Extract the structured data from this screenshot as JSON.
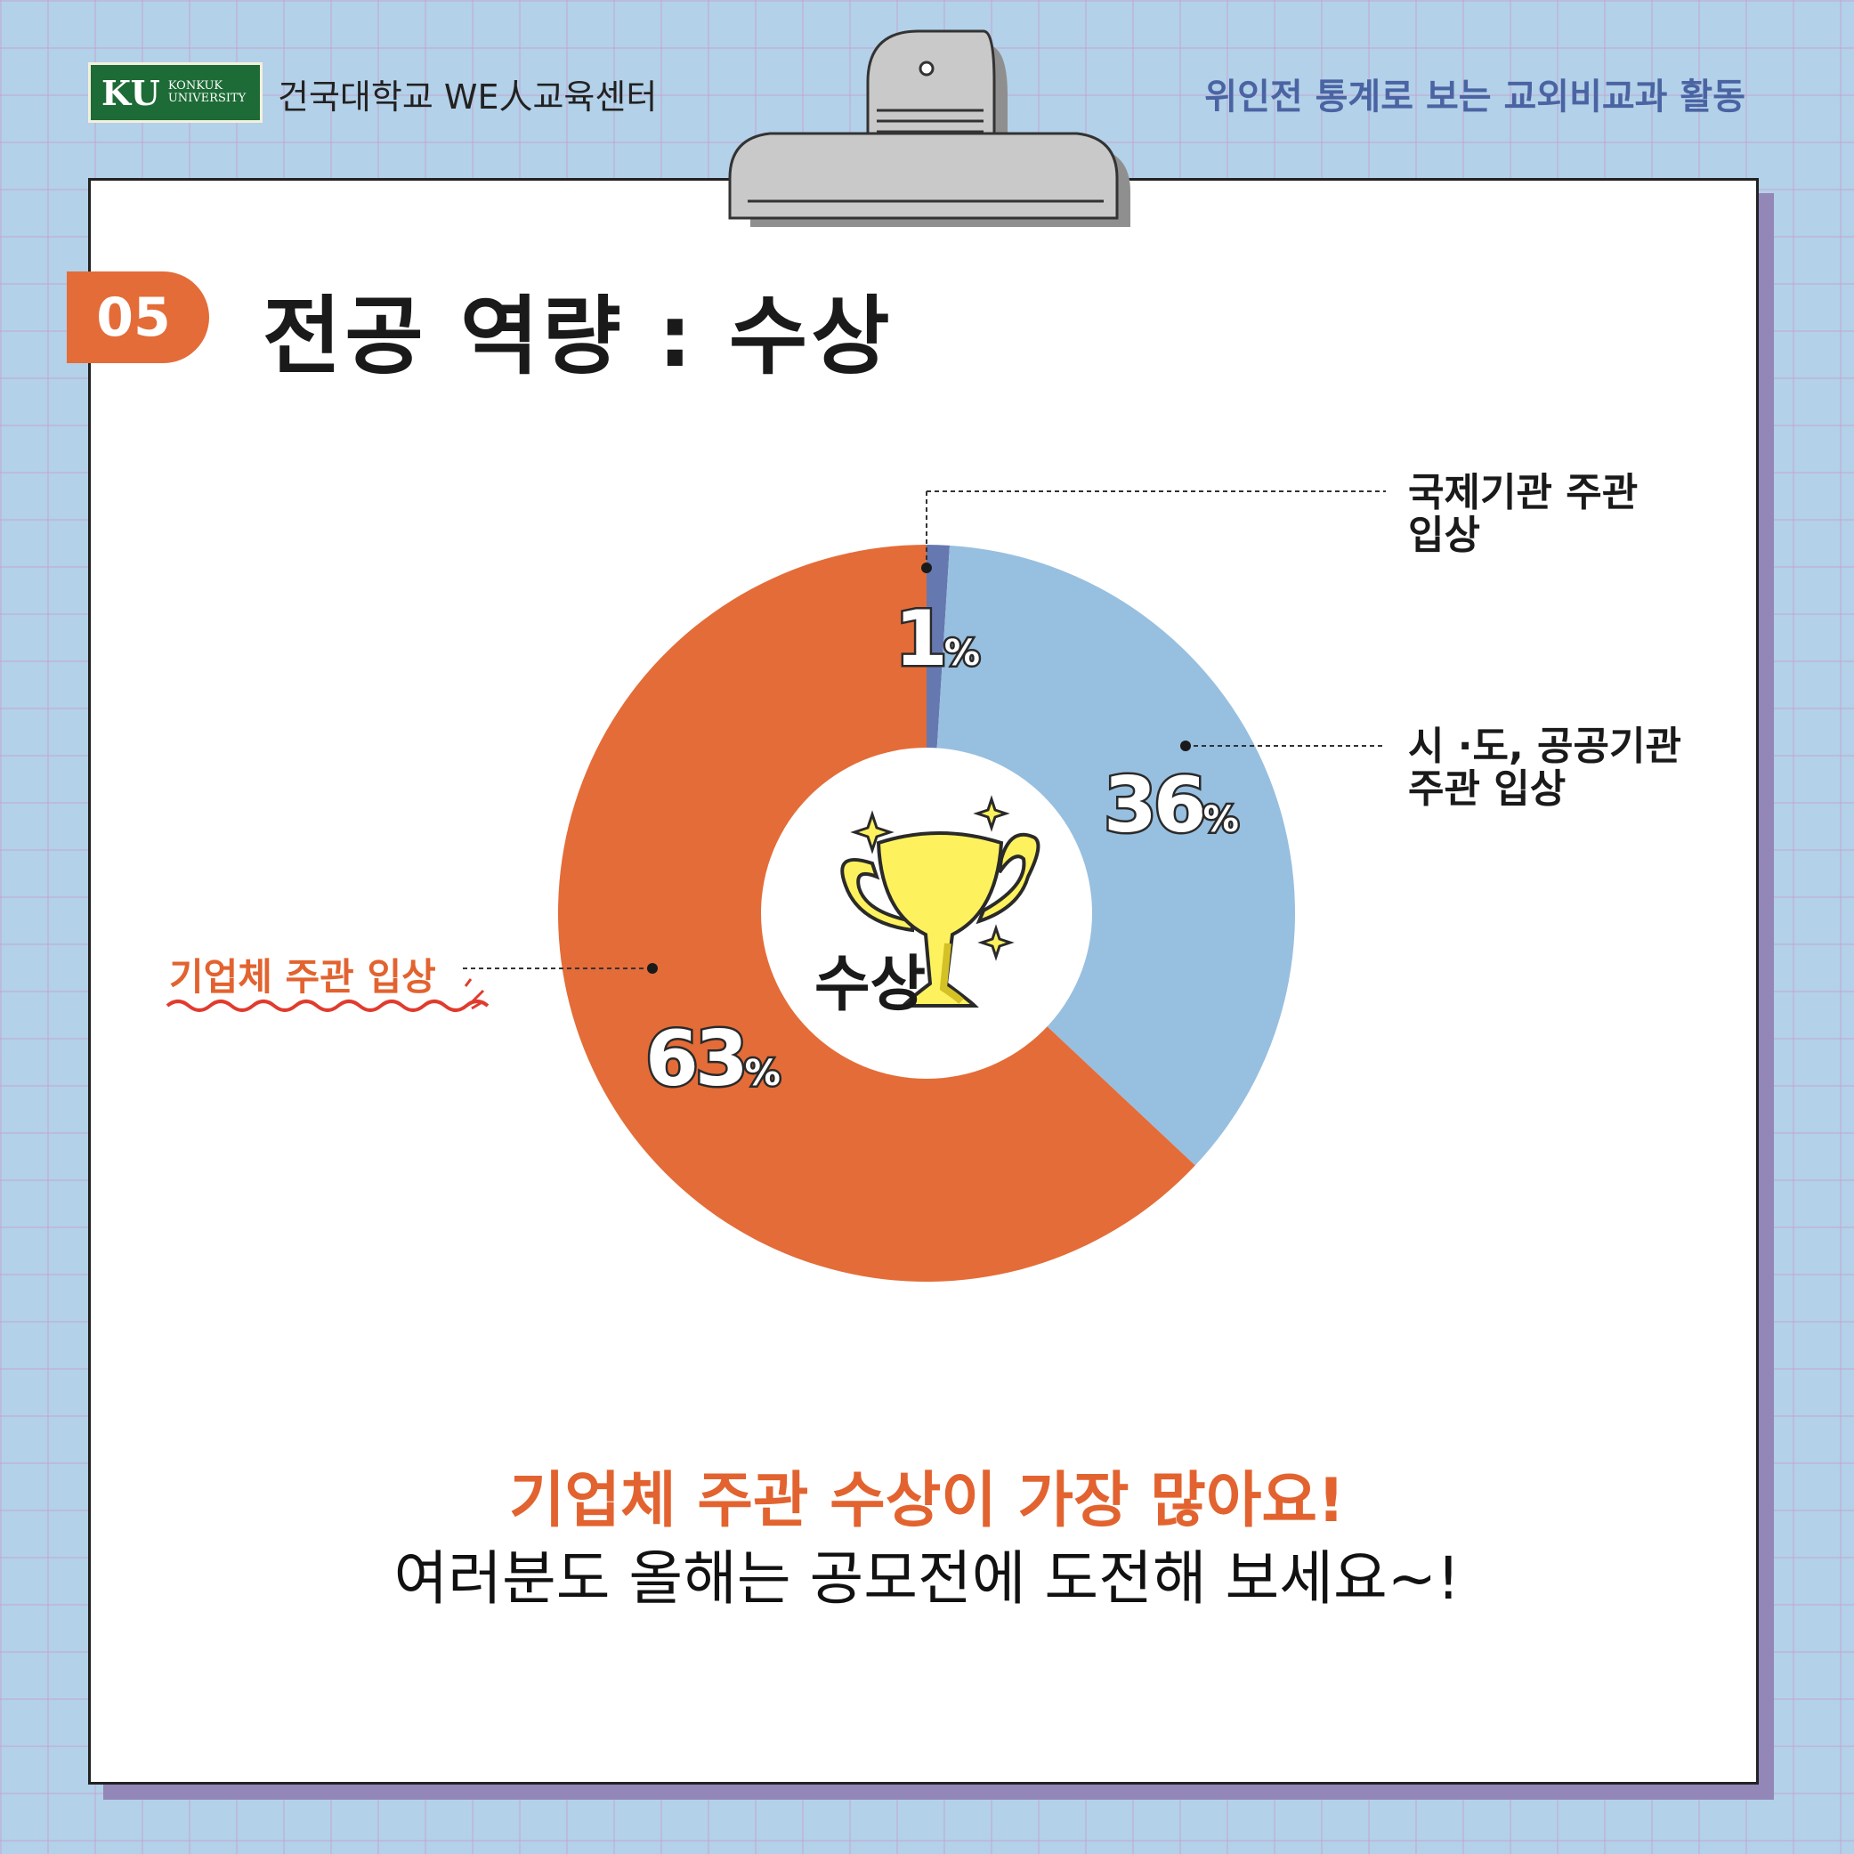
{
  "header": {
    "logo_ku": "KU",
    "logo_konkuk": "KONKUK",
    "logo_university": "UNIVERSITY",
    "org_name": "건국대학교 WE人교육센터",
    "series_title": "위인전 통계로 보는 교외비교과 활동"
  },
  "section": {
    "number": "05",
    "title": "전공 역량 : 수상"
  },
  "center_label": "수상",
  "labels": {
    "international": "국제기관 주관\n입상",
    "public": "시 ·도, 공공기관\n주관 입상",
    "company": "기업체 주관 입상"
  },
  "percent_sign": "%",
  "footer": {
    "headline": "기업체 주관 수상이 가장 많아요!",
    "subline": "여러분도 올해는 공모전에 도전해 보세요~!"
  },
  "colors": {
    "company": "#e46c38",
    "public": "#97bfe0",
    "international": "#6678b0",
    "accent": "#e2632f"
  },
  "chart_data": {
    "type": "pie",
    "donut": true,
    "title": "전공 역량 : 수상",
    "categories": [
      "국제기관 주관 입상",
      "시 ·도, 공공기관 주관 입상",
      "기업체 주관 입상"
    ],
    "values": [
      1,
      36,
      63
    ],
    "unit": "%",
    "data_labels": [
      "1",
      "36",
      "63"
    ]
  }
}
